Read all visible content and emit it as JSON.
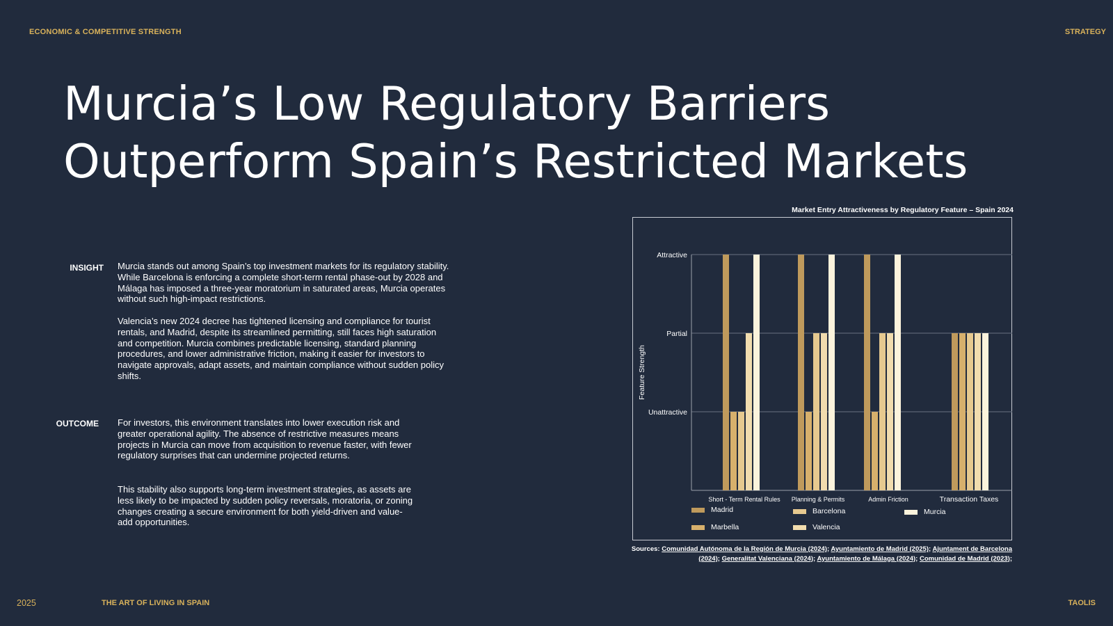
{
  "header": {
    "section_label": "ECONOMIC & COMPETITIVE STRENGTH",
    "category_label": "STRATEGY"
  },
  "title": {
    "line1": "Murcia’s Low Regulatory Barriers",
    "line2": "Outperform Spain’s Restricted Markets"
  },
  "insight": {
    "label": "INSIGHT",
    "para1": "Murcia stands out among Spain’s top investment markets for its regulatory stability. While Barcelona is enforcing a complete short-term rental phase-out by 2028 and Málaga has imposed a three-year moratorium in saturated areas, Murcia operates without such high-impact restrictions.",
    "para2": "Valencia’s new 2024 decree has tightened licensing and compliance for tourist rentals, and Madrid, despite its streamlined permitting, still faces high saturation and competition. Murcia combines predictable licensing, standard planning procedures, and lower administrative friction, making it easier for investors to navigate approvals, adapt assets, and maintain compliance without sudden policy shifts."
  },
  "outcome": {
    "label": "OUTCOME",
    "para1": "For investors, this environment translates into lower execution risk and greater operational agility. The absence of restrictive measures means projects in Murcia can move from acquisition to revenue faster, with fewer regulatory surprises that can undermine projected returns.",
    "para2": "This stability also supports long-term investment strategies, as assets are less likely to be impacted by sudden policy reversals, moratoria, or zoning changes creating a secure environment  for both yield-driven and value-add opportunities."
  },
  "footer": {
    "year": "2025",
    "tagline": "THE ART OF LIVING IN SPAIN",
    "brand": "TAOLIS"
  },
  "sources": {
    "prefix": "Sources:",
    "items": [
      "Comunidad Autónoma de la Región de Murcia (2024)",
      "Ayuntamiento de Madrid (2025)",
      "Ajuntament de Barcelona (2024)",
      "Generalitat Valenciana (2024)",
      "Ayuntamiento de Málaga (2024)",
      "Comunidad de Madrid (2023)"
    ]
  },
  "chart_data": {
    "type": "bar",
    "title": "Market Entry Attractiveness by Regulatory Feature – Spain 2024",
    "ylabel": "Feature Strength",
    "xlabel": "",
    "categories": [
      "Short - Term Rental Rules",
      "Planning & Permits",
      "Admin Friction",
      "Transaction Taxes"
    ],
    "y_tick_labels": [
      "Unattractive",
      "Partial",
      "Attractive"
    ],
    "y_tick_values": [
      1,
      2,
      3
    ],
    "ylim": [
      0,
      3
    ],
    "grid": true,
    "legend_position": "bottom",
    "series": [
      {
        "name": "Madrid",
        "color": "#bf9a5c",
        "values": [
          3,
          3,
          3,
          2
        ]
      },
      {
        "name": "Marbella",
        "color": "#d7b06c",
        "values": [
          1,
          1,
          1,
          2
        ]
      },
      {
        "name": "Barcelona",
        "color": "#e6c98f",
        "values": [
          1,
          2,
          2,
          2
        ]
      },
      {
        "name": "Valencia",
        "color": "#f1dcae",
        "values": [
          2,
          2,
          2,
          2
        ]
      },
      {
        "name": "Murcia",
        "color": "#fcf3dc",
        "values": [
          3,
          3,
          3,
          2
        ]
      }
    ]
  },
  "colors": {
    "background": "#212b3d",
    "accent": "#d9b25b"
  }
}
